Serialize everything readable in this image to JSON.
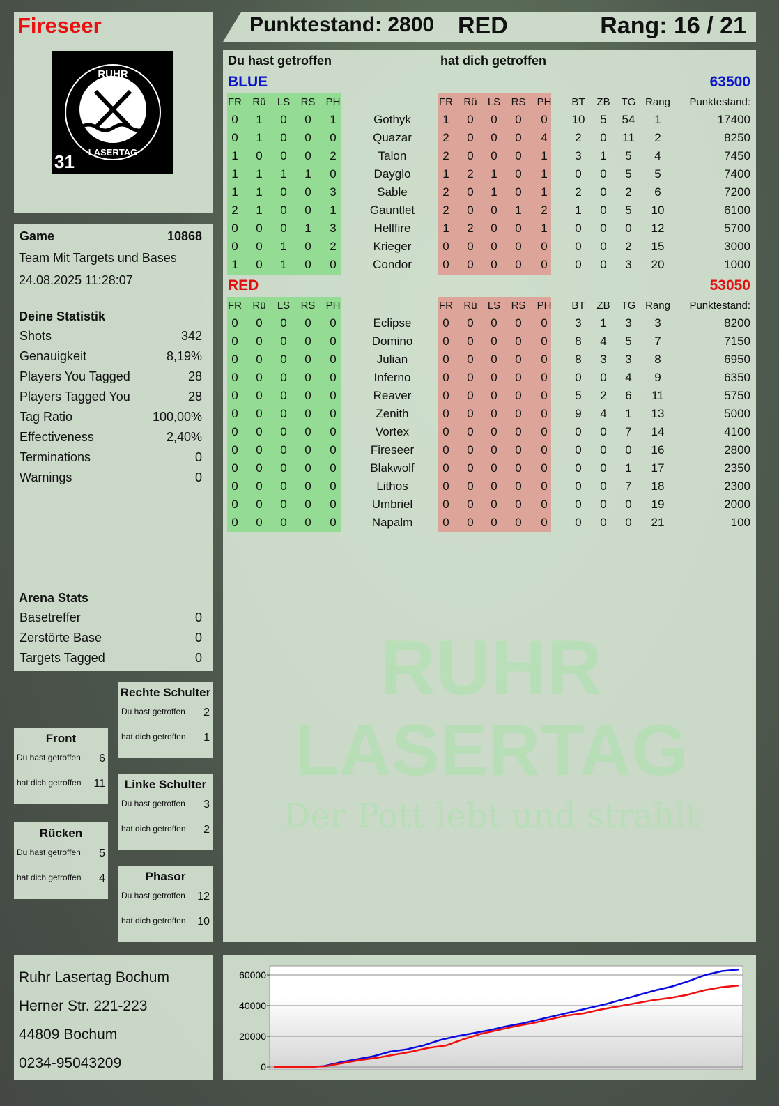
{
  "player": {
    "name": "Fireseer",
    "score_label": "Punktestand: 2800",
    "team": "RED",
    "rank_label": "Rang: 16 / 21",
    "logo_text": "RUHR LASERTAG",
    "logo_number": "31"
  },
  "game": {
    "label": "Game",
    "id": "10868",
    "mode": "Team Mit Targets und Bases",
    "datetime": "24.08.2025 11:28:07"
  },
  "stats": {
    "title": "Deine Statistik",
    "items": [
      {
        "label": "Shots",
        "value": "342"
      },
      {
        "label": "Genauigkeit",
        "value": "8,19%"
      },
      {
        "label": "Players You Tagged",
        "value": "28"
      },
      {
        "label": "Players Tagged You",
        "value": "28"
      },
      {
        "label": "Tag Ratio",
        "value": "100,00%"
      },
      {
        "label": "Effectiveness",
        "value": "2,40%"
      },
      {
        "label": "Terminations",
        "value": "0"
      },
      {
        "label": "Warnings",
        "value": "0"
      }
    ]
  },
  "arena": {
    "title": "Arena Stats",
    "items": [
      {
        "label": "Basetreffer",
        "value": "0"
      },
      {
        "label": "Zerstörte Base",
        "value": "0"
      },
      {
        "label": "Targets Tagged",
        "value": "0"
      }
    ]
  },
  "zones": [
    {
      "name": "Front",
      "hit": "6",
      "got": "11"
    },
    {
      "name": "Rücken",
      "hit": "5",
      "got": "4"
    },
    {
      "name": "Rechte Schulter",
      "hit": "2",
      "got": "1"
    },
    {
      "name": "Linke Schulter",
      "hit": "3",
      "got": "2"
    },
    {
      "name": "Phasor",
      "hit": "12",
      "got": "10"
    }
  ],
  "zone_labels": {
    "hit": "Du hast getroffen",
    "got": "hat dich getroffen"
  },
  "table": {
    "you_hit": "Du hast getroffen",
    "hit_you": "hat dich getroffen",
    "columns": [
      "FR",
      "Rü",
      "LS",
      "RS",
      "PH",
      "FR",
      "Rü",
      "LS",
      "RS",
      "PH",
      "BT",
      "ZB",
      "TG",
      "Rang",
      "Punktestand:"
    ],
    "teams": [
      {
        "name": "BLUE",
        "score": "63500",
        "color": "#0a14c8",
        "rows": [
          [
            "0",
            "1",
            "0",
            "0",
            "1",
            "Gothyk",
            "1",
            "0",
            "0",
            "0",
            "0",
            "10",
            "5",
            "54",
            "1",
            "17400"
          ],
          [
            "0",
            "1",
            "0",
            "0",
            "0",
            "Quazar",
            "2",
            "0",
            "0",
            "0",
            "4",
            "2",
            "0",
            "11",
            "2",
            "8250"
          ],
          [
            "1",
            "0",
            "0",
            "0",
            "2",
            "Talon",
            "2",
            "0",
            "0",
            "0",
            "1",
            "3",
            "1",
            "5",
            "4",
            "7450"
          ],
          [
            "1",
            "1",
            "1",
            "1",
            "0",
            "Dayglo",
            "1",
            "2",
            "1",
            "0",
            "1",
            "0",
            "0",
            "5",
            "5",
            "7400"
          ],
          [
            "1",
            "1",
            "0",
            "0",
            "3",
            "Sable",
            "2",
            "0",
            "1",
            "0",
            "1",
            "2",
            "0",
            "2",
            "6",
            "7200"
          ],
          [
            "2",
            "1",
            "0",
            "0",
            "1",
            "Gauntlet",
            "2",
            "0",
            "0",
            "1",
            "2",
            "1",
            "0",
            "5",
            "10",
            "6100"
          ],
          [
            "0",
            "0",
            "0",
            "1",
            "3",
            "Hellfire",
            "1",
            "2",
            "0",
            "0",
            "1",
            "0",
            "0",
            "0",
            "12",
            "5700"
          ],
          [
            "0",
            "0",
            "1",
            "0",
            "2",
            "Krieger",
            "0",
            "0",
            "0",
            "0",
            "0",
            "0",
            "0",
            "2",
            "15",
            "3000"
          ],
          [
            "1",
            "0",
            "1",
            "0",
            "0",
            "Condor",
            "0",
            "0",
            "0",
            "0",
            "0",
            "0",
            "0",
            "3",
            "20",
            "1000"
          ]
        ]
      },
      {
        "name": "RED",
        "score": "53050",
        "color": "#e01010",
        "rows": [
          [
            "0",
            "0",
            "0",
            "0",
            "0",
            "Eclipse",
            "0",
            "0",
            "0",
            "0",
            "0",
            "3",
            "1",
            "3",
            "3",
            "8200"
          ],
          [
            "0",
            "0",
            "0",
            "0",
            "0",
            "Domino",
            "0",
            "0",
            "0",
            "0",
            "0",
            "8",
            "4",
            "5",
            "7",
            "7150"
          ],
          [
            "0",
            "0",
            "0",
            "0",
            "0",
            "Julian",
            "0",
            "0",
            "0",
            "0",
            "0",
            "8",
            "3",
            "3",
            "8",
            "6950"
          ],
          [
            "0",
            "0",
            "0",
            "0",
            "0",
            "Inferno",
            "0",
            "0",
            "0",
            "0",
            "0",
            "0",
            "0",
            "4",
            "9",
            "6350"
          ],
          [
            "0",
            "0",
            "0",
            "0",
            "0",
            "Reaver",
            "0",
            "0",
            "0",
            "0",
            "0",
            "5",
            "2",
            "6",
            "11",
            "5750"
          ],
          [
            "0",
            "0",
            "0",
            "0",
            "0",
            "Zenith",
            "0",
            "0",
            "0",
            "0",
            "0",
            "9",
            "4",
            "1",
            "13",
            "5000"
          ],
          [
            "0",
            "0",
            "0",
            "0",
            "0",
            "Vortex",
            "0",
            "0",
            "0",
            "0",
            "0",
            "0",
            "0",
            "7",
            "14",
            "4100"
          ],
          [
            "0",
            "0",
            "0",
            "0",
            "0",
            "Fireseer",
            "0",
            "0",
            "0",
            "0",
            "0",
            "0",
            "0",
            "0",
            "16",
            "2800"
          ],
          [
            "0",
            "0",
            "0",
            "0",
            "0",
            "Blakwolf",
            "0",
            "0",
            "0",
            "0",
            "0",
            "0",
            "0",
            "1",
            "17",
            "2350"
          ],
          [
            "0",
            "0",
            "0",
            "0",
            "0",
            "Lithos",
            "0",
            "0",
            "0",
            "0",
            "0",
            "0",
            "0",
            "7",
            "18",
            "2300"
          ],
          [
            "0",
            "0",
            "0",
            "0",
            "0",
            "Umbriel",
            "0",
            "0",
            "0",
            "0",
            "0",
            "0",
            "0",
            "0",
            "19",
            "2000"
          ],
          [
            "0",
            "0",
            "0",
            "0",
            "0",
            "Napalm",
            "0",
            "0",
            "0",
            "0",
            "0",
            "0",
            "0",
            "0",
            "21",
            "100"
          ]
        ]
      }
    ]
  },
  "address": [
    "Ruhr Lasertag Bochum",
    "Herner Str. 221-223",
    "44809 Bochum",
    "0234-95043209"
  ],
  "watermark": {
    "line1": "RUHR",
    "line2": "LASERTAG",
    "line3": "Der Pott lebt und strahlt"
  },
  "chart_data": {
    "type": "line",
    "ylim": [
      0,
      65000
    ],
    "yticks": [
      "60000",
      "40000",
      "20000",
      "0"
    ],
    "grid": true,
    "series": [
      {
        "color": "#0a0ae0",
        "values": [
          0,
          0,
          0,
          500,
          3000,
          5000,
          7000,
          10000,
          11500,
          14000,
          17500,
          20000,
          22000,
          24000,
          26500,
          28500,
          31000,
          33500,
          36000,
          38500,
          41000,
          44000,
          47000,
          50000,
          52500,
          56000,
          60000,
          62500,
          63500
        ]
      },
      {
        "color": "#f01010",
        "values": [
          0,
          0,
          0,
          500,
          2500,
          4500,
          6000,
          8000,
          10000,
          12500,
          14000,
          18000,
          21500,
          24000,
          26500,
          28500,
          31000,
          33500,
          35000,
          37500,
          39500,
          41500,
          43500,
          45000,
          47000,
          50000,
          52000,
          53050
        ]
      }
    ]
  }
}
